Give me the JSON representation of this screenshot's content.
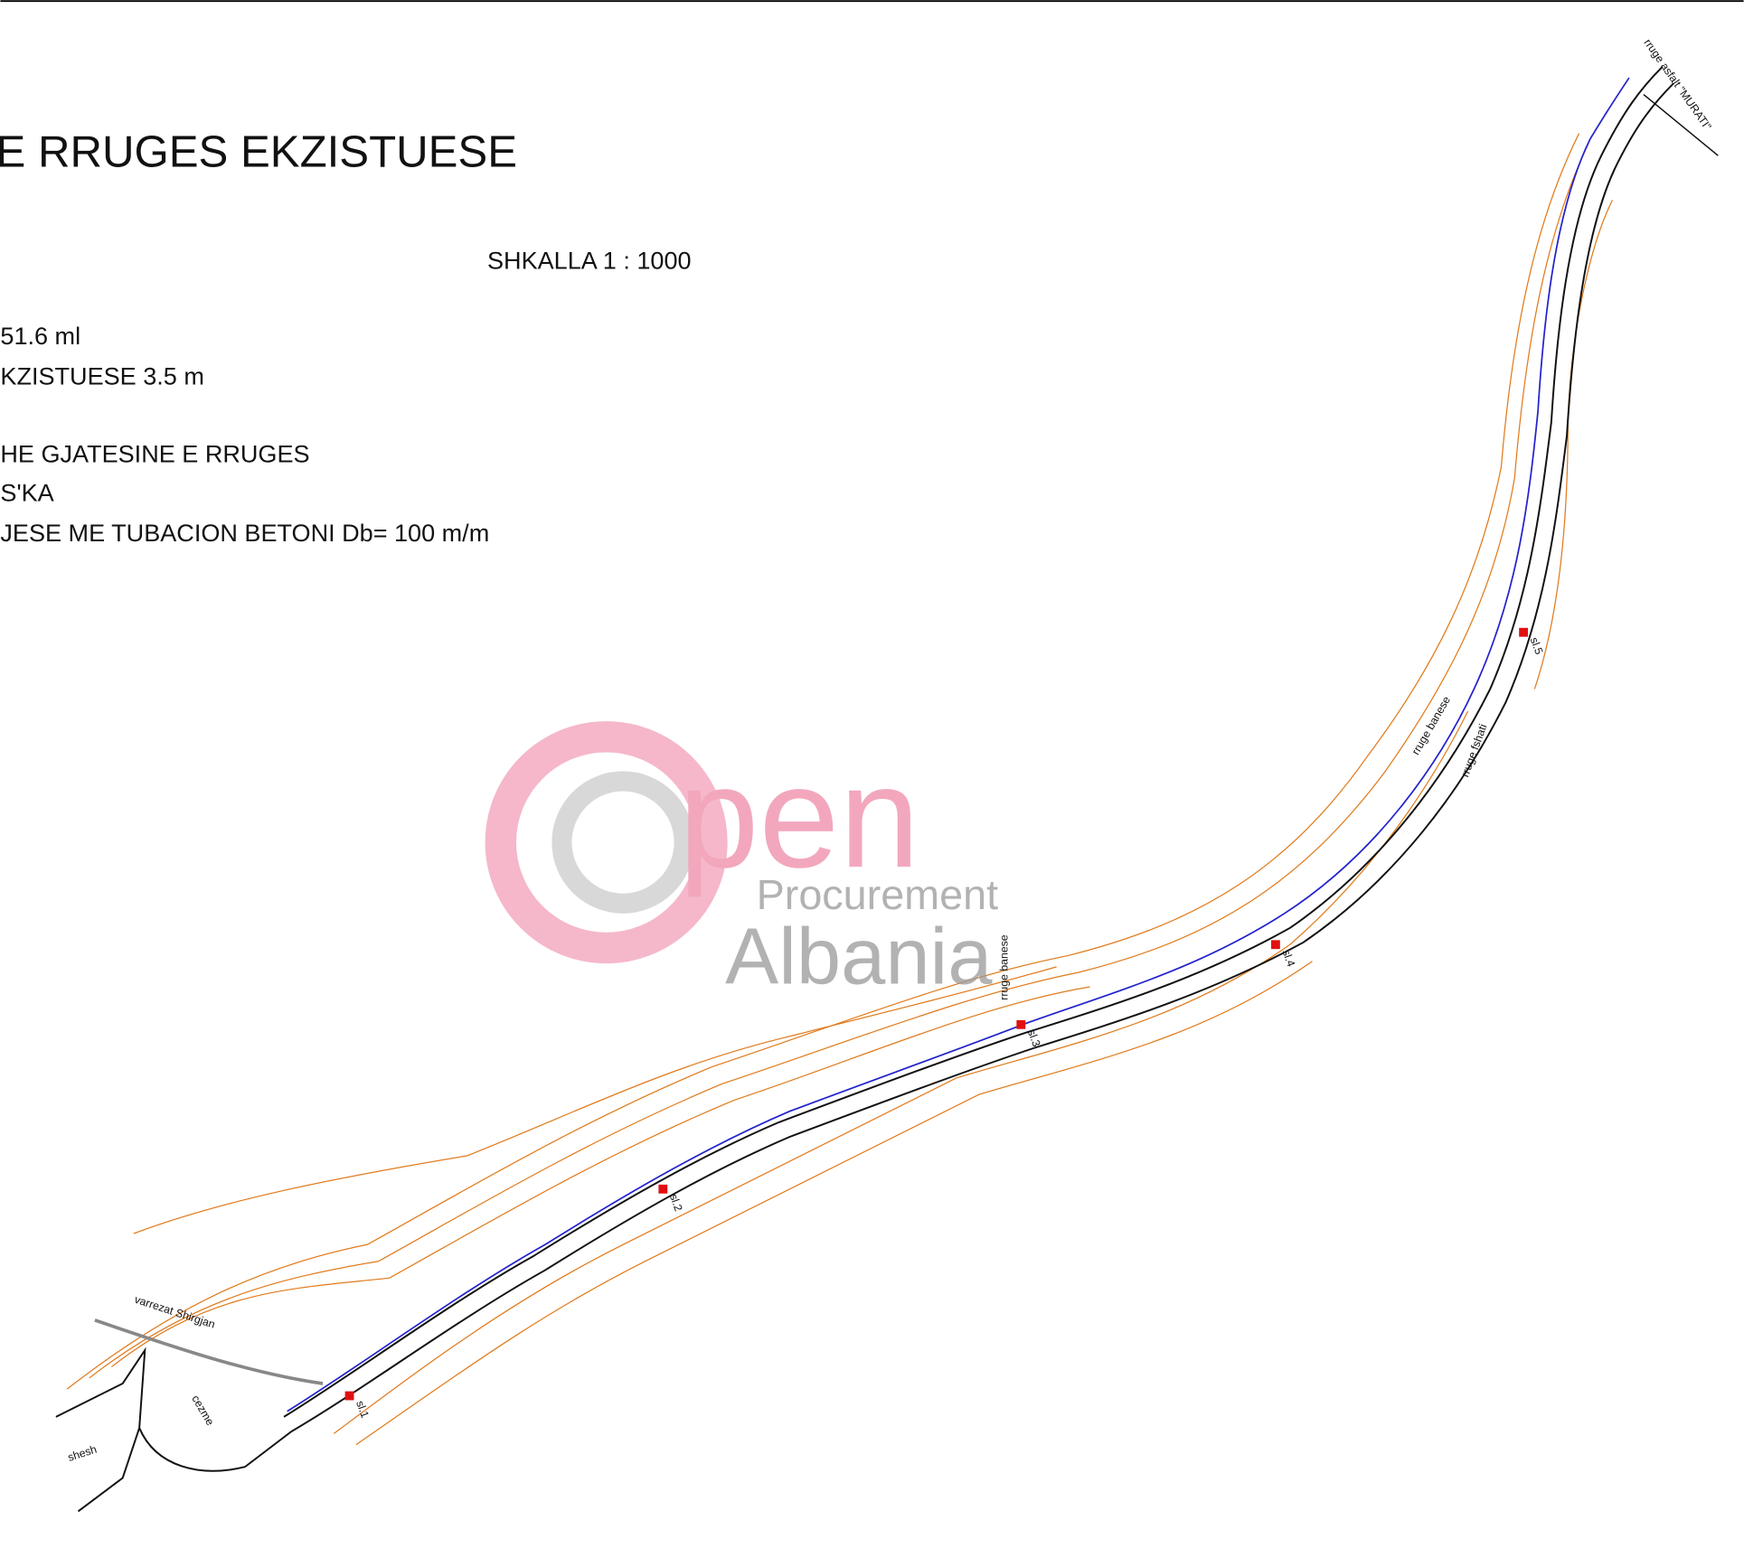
{
  "drawing": {
    "title": "E RRUGES EKZISTUESE",
    "scale": "SHKALLA 1 : 1000",
    "notes": [
      "51.6 ml",
      "KZISTUESE   3.5 m",
      "HE GJATESINE E RRUGES",
      "S'KA",
      "JESE  ME TUBACION BETONI Db= 100 m/m"
    ],
    "labels": {
      "asphalt_road": "rruge asfalt \"MURATI\"",
      "residential_road_1": "rruge banese",
      "residential_road_2": "rruge banese",
      "village_road": "rruge fshati",
      "cemetery": "varrezat Shirgjan",
      "square": "shesh",
      "fountain": "cezme",
      "sections": [
        "sl.1",
        "sl.2",
        "sl.3",
        "sl.4",
        "sl.5"
      ]
    },
    "watermark": {
      "logo": "pen",
      "line1": "Procurement",
      "line2": "Albania"
    }
  }
}
